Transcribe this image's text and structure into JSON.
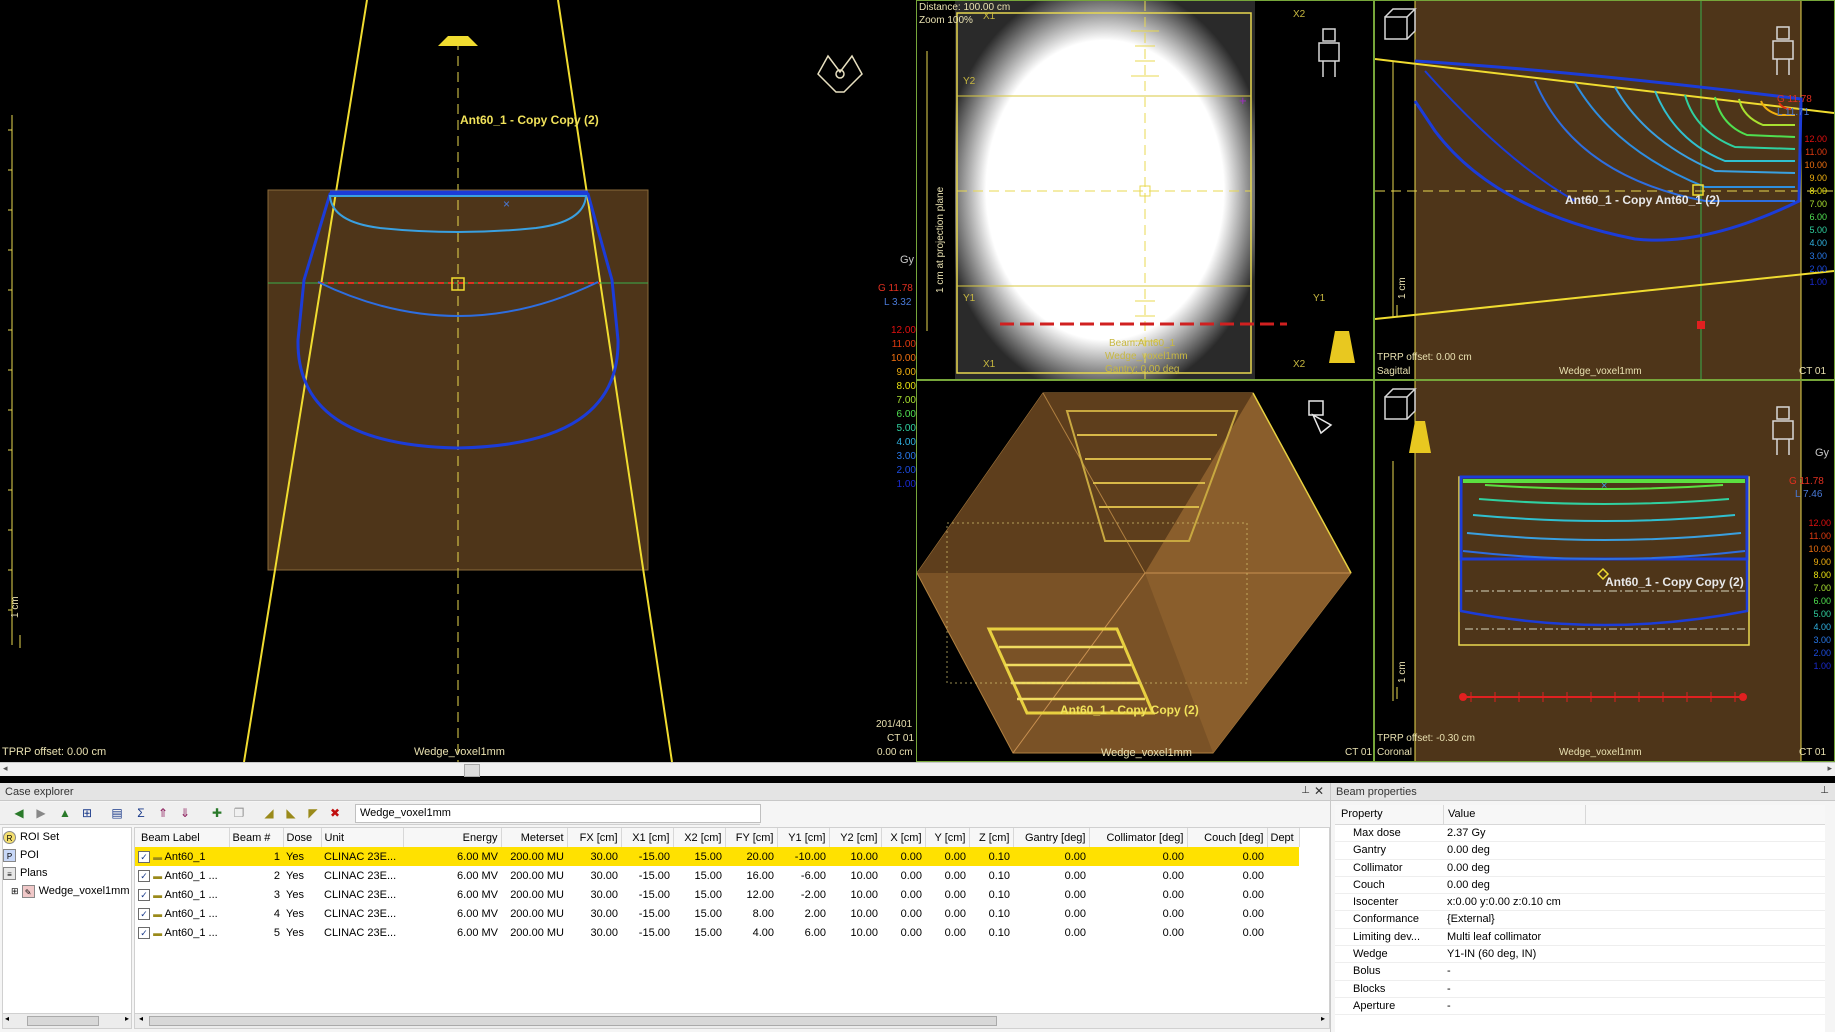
{
  "views": {
    "main": {
      "beam_label": "Ant60_1 - Copy Copy (2)",
      "tprp": "TPRP offset: 0.00 cm",
      "dataset": "Wedge_voxel1mm",
      "scale": "1 cm",
      "gy": "Gy",
      "g_val": "G 11.78",
      "l_val": "L 3.32",
      "legend": [
        "12.00",
        "11.00",
        "10.00",
        "9.00",
        "8.00",
        "7.00",
        "6.00",
        "5.00",
        "4.00",
        "3.00",
        "2.00",
        "1.00"
      ],
      "slice": "201/401",
      "ct": "CT 01",
      "pos": "0.00 cm"
    },
    "bev": {
      "distance": "Distance: 100.00 cm",
      "zoom": "Zoom 100%",
      "projection_label": "1 cm at projection plane",
      "beam_name": "Beam:Ant60_1",
      "dataset": "Wedge_voxel1mm",
      "gantry": "Gantry: 0.00 deg",
      "x1": "X1",
      "x2": "X2",
      "y1": "Y1",
      "y2": "Y2"
    },
    "threed": {
      "beam_label": "Ant60_1 - Copy Copy (2)",
      "dataset": "Wedge_voxel1mm",
      "ct": "CT 01"
    },
    "sagittal": {
      "beam_label": "Ant60_1 - Copy Ant60_1 (2)",
      "tprp": "TPRP offset: 0.00 cm",
      "dataset": "Wedge_voxel1mm",
      "ct": "CT 01",
      "orient": "Sagittal",
      "gy": "Gy",
      "g_val": "G 11.78",
      "l_val": "L 11.71",
      "legend": [
        "12.00",
        "11.00",
        "10.00",
        "9.00",
        "8.00",
        "7.00",
        "6.00",
        "5.00",
        "4.00",
        "3.00",
        "2.00",
        "1.00"
      ],
      "scale": "1 cm"
    },
    "coronal": {
      "beam_label": "Ant60_1 - Copy Copy (2)",
      "tprp": "TPRP offset: -0.30 cm",
      "dataset": "Wedge_voxel1mm",
      "ct": "CT 01",
      "orient": "Coronal",
      "gy": "Gy",
      "g_val": "G 11.78",
      "l_val": "L 7.46",
      "legend": [
        "12.00",
        "11.00",
        "10.00",
        "9.00",
        "8.00",
        "7.00",
        "6.00",
        "5.00",
        "4.00",
        "3.00",
        "2.00",
        "1.00"
      ],
      "scale": "1 cm"
    }
  },
  "case_explorer": {
    "title": "Case explorer",
    "dataset_field": "Wedge_voxel1mm",
    "tree": [
      "ROI Set",
      "POI",
      "Plans",
      "Wedge_voxel1mm"
    ],
    "columns": [
      "Beam Label",
      "Beam #",
      "Dose",
      "Unit",
      "Energy",
      "Meterset",
      "FX [cm]",
      "X1 [cm]",
      "X2 [cm]",
      "FY [cm]",
      "Y1 [cm]",
      "Y2 [cm]",
      "X [cm]",
      "Y [cm]",
      "Z [cm]",
      "Gantry [deg]",
      "Collimator [deg]",
      "Couch [deg]",
      "Dept"
    ],
    "rows": [
      [
        "Ant60_1",
        "1",
        "Yes",
        "CLINAC 23E...",
        "6.00 MV",
        "200.00 MU",
        "30.00",
        "-15.00",
        "15.00",
        "20.00",
        "-10.00",
        "10.00",
        "0.00",
        "0.00",
        "0.10",
        "0.00",
        "0.00",
        "0.00"
      ],
      [
        "Ant60_1 ...",
        "2",
        "Yes",
        "CLINAC 23E...",
        "6.00 MV",
        "200.00 MU",
        "30.00",
        "-15.00",
        "15.00",
        "16.00",
        "-6.00",
        "10.00",
        "0.00",
        "0.00",
        "0.10",
        "0.00",
        "0.00",
        "0.00"
      ],
      [
        "Ant60_1 ...",
        "3",
        "Yes",
        "CLINAC 23E...",
        "6.00 MV",
        "200.00 MU",
        "30.00",
        "-15.00",
        "15.00",
        "12.00",
        "-2.00",
        "10.00",
        "0.00",
        "0.00",
        "0.10",
        "0.00",
        "0.00",
        "0.00"
      ],
      [
        "Ant60_1 ...",
        "4",
        "Yes",
        "CLINAC 23E...",
        "6.00 MV",
        "200.00 MU",
        "30.00",
        "-15.00",
        "15.00",
        "8.00",
        "2.00",
        "10.00",
        "0.00",
        "0.00",
        "0.10",
        "0.00",
        "0.00",
        "0.00"
      ],
      [
        "Ant60_1 ...",
        "5",
        "Yes",
        "CLINAC 23E...",
        "6.00 MV",
        "200.00 MU",
        "30.00",
        "-15.00",
        "15.00",
        "4.00",
        "6.00",
        "10.00",
        "0.00",
        "0.00",
        "0.10",
        "0.00",
        "0.00",
        "0.00"
      ]
    ],
    "selected_row": 0
  },
  "beam_properties": {
    "title": "Beam properties",
    "col_property": "Property",
    "col_value": "Value",
    "items": [
      [
        "Max dose",
        "2.37 Gy"
      ],
      [
        "Gantry",
        "0.00 deg"
      ],
      [
        "Collimator",
        "0.00 deg"
      ],
      [
        "Couch",
        "0.00 deg"
      ],
      [
        "Isocenter",
        "x:0.00 y:0.00 z:0.10 cm"
      ],
      [
        "Conformance",
        "{External}"
      ],
      [
        "Limiting dev...",
        "Multi leaf collimator"
      ],
      [
        "Wedge",
        "Y1-IN (60 deg, IN)"
      ],
      [
        "Bolus",
        "-"
      ],
      [
        "Blocks",
        "-"
      ],
      [
        "Aperture",
        "-"
      ]
    ]
  },
  "colors": {
    "phantom": "#4e3519",
    "beam_edge": "#f0dc30",
    "iso_blue": "#1c3cd8",
    "iso_cyan": "#3aa0e0",
    "iso_green": "#5ce040",
    "view_border": "#76a63a",
    "selection": "#ffe100"
  }
}
